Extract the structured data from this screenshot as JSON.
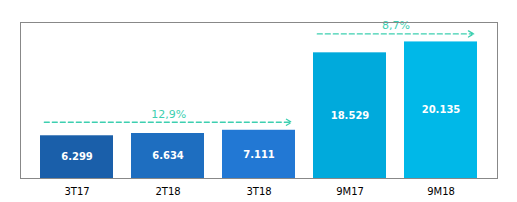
{
  "chart_data": {
    "type": "bar",
    "categories": [
      "3T17",
      "2T18",
      "3T18",
      "9M17",
      "9M18"
    ],
    "values": [
      6.299,
      6.634,
      7.111,
      18.529,
      20.135
    ],
    "colors": [
      "#1a5faa",
      "#1e6ec0",
      "#2278d4",
      "#00aadc",
      "#00b8e8"
    ],
    "ylim": [
      0,
      23
    ],
    "data_labels": true,
    "tick_labels": "x",
    "grid": false,
    "annotations": [
      {
        "text": "12,9%",
        "color": "#3dcfb0",
        "from": "3T17",
        "to": "3T18"
      },
      {
        "text": "8,7%",
        "color": "#3dcfb0",
        "from": "9M17",
        "to": "9M18"
      }
    ]
  }
}
